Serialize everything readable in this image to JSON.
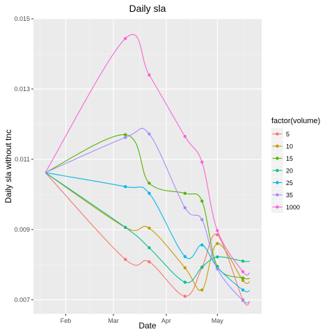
{
  "chart_data": {
    "type": "line",
    "title": "Daily sla",
    "xlabel": "Date",
    "ylabel": "Daily sla without tnc",
    "x_ticks": [
      "Feb",
      "Mar",
      "Apr",
      "May"
    ],
    "y_ticks": [
      "0.007",
      "0.009",
      "0.011",
      "0.013",
      "0.015"
    ],
    "ylim": [
      0.0066,
      0.015
    ],
    "xlim": [
      "2017-01-13",
      "2017-05-27"
    ],
    "grid": true,
    "legend": {
      "title": "factor(volume)",
      "position": "right"
    },
    "x": [
      "2017-01-20",
      "2017-03-08",
      "2017-03-22",
      "2017-04-12",
      "2017-04-22",
      "2017-05-01",
      "2017-05-16"
    ],
    "series": [
      {
        "name": "5",
        "color": "#F8766D",
        "values": [
          0.01062,
          0.00815,
          0.00808,
          0.0071,
          0.00792,
          0.00885,
          0.007
        ]
      },
      {
        "name": "10",
        "color": "#C49A00",
        "values": [
          0.01062,
          0.00906,
          0.00904,
          0.00791,
          0.00728,
          0.0086,
          0.00755
        ]
      },
      {
        "name": "15",
        "color": "#53B400",
        "values": [
          0.01062,
          0.0117,
          0.01032,
          0.01003,
          0.00981,
          0.00795,
          0.00762
        ]
      },
      {
        "name": "20",
        "color": "#00C094",
        "values": [
          0.01062,
          0.00906,
          0.00848,
          0.0075,
          0.00793,
          0.00822,
          0.0081
        ]
      },
      {
        "name": "25",
        "color": "#00B6EB",
        "values": [
          0.01062,
          0.01022,
          0.01003,
          0.00823,
          0.00856,
          0.00792,
          0.00728
        ]
      },
      {
        "name": "35",
        "color": "#A58AFF",
        "values": [
          0.01062,
          0.01162,
          0.01172,
          0.00962,
          0.00928,
          0.00788,
          0.00698
        ]
      },
      {
        "name": "1000",
        "color": "#FB61D7",
        "values": [
          0.01062,
          0.01444,
          0.0134,
          0.01165,
          0.01092,
          0.00897,
          0.0078
        ]
      }
    ]
  }
}
